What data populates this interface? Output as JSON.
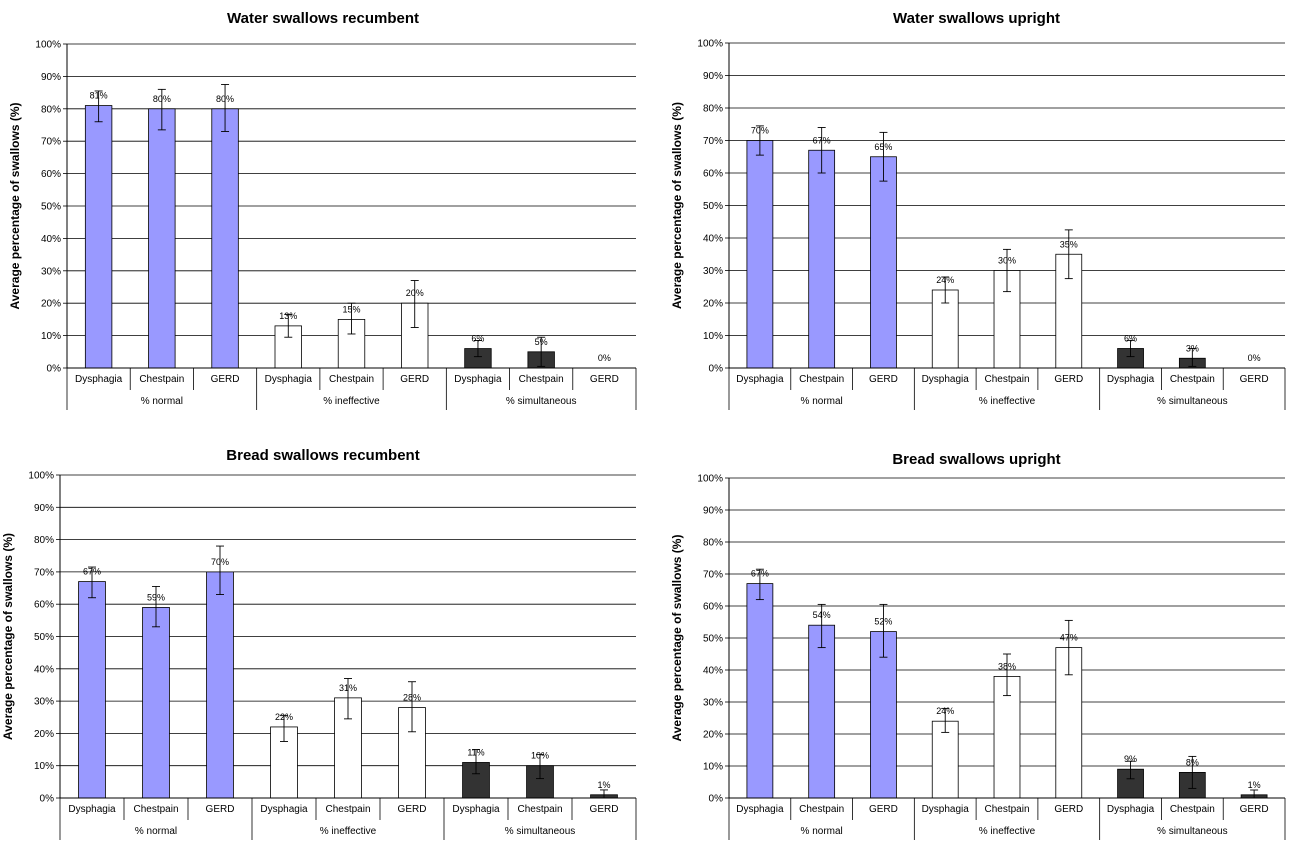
{
  "colors": {
    "normal": "#9999ff",
    "ineffective": "#ffffff",
    "simultaneous": "#333333"
  },
  "chart_data": [
    {
      "type": "bar",
      "title": "Water swallows recumbent",
      "ylabel": "Average percentage of swallows (%)",
      "ylim": [
        0,
        100
      ],
      "yticks": [
        "0%",
        "10%",
        "20%",
        "30%",
        "40%",
        "50%",
        "60%",
        "70%",
        "80%",
        "90%",
        "100%"
      ],
      "grid": true,
      "groups": [
        "% normal",
        "% ineffective",
        "% simultaneous"
      ],
      "categories": [
        "Dysphagia",
        "Chestpain",
        "GERD"
      ],
      "series": [
        {
          "values": [
            81,
            80,
            80
          ],
          "labels": [
            "81%",
            "80%",
            "80%"
          ],
          "err_lo": [
            76,
            73.5,
            73
          ],
          "err_hi": [
            85.5,
            86,
            87.5
          ]
        },
        {
          "values": [
            13,
            15,
            20
          ],
          "labels": [
            "13%",
            "15%",
            "20%"
          ],
          "err_lo": [
            9.5,
            10.5,
            12.5
          ],
          "err_hi": [
            16.5,
            20,
            27
          ]
        },
        {
          "values": [
            6,
            5,
            0
          ],
          "labels": [
            "6%",
            "5%",
            "0%"
          ],
          "err_lo": [
            3.5,
            0.5,
            0
          ],
          "err_hi": [
            8.5,
            9.5,
            0
          ]
        }
      ]
    },
    {
      "type": "bar",
      "title": "Water swallows upright",
      "ylabel": "Average percentage of swallows (%)",
      "ylim": [
        0,
        100
      ],
      "yticks": [
        "0%",
        "10%",
        "20%",
        "30%",
        "40%",
        "50%",
        "60%",
        "70%",
        "80%",
        "90%",
        "100%"
      ],
      "grid": true,
      "groups": [
        "% normal",
        "% ineffective",
        "% simultaneous"
      ],
      "categories": [
        "Dysphagia",
        "Chestpain",
        "GERD"
      ],
      "series": [
        {
          "values": [
            70,
            67,
            65
          ],
          "labels": [
            "70%",
            "67%",
            "65%"
          ],
          "err_lo": [
            65.5,
            60,
            57.5
          ],
          "err_hi": [
            74.5,
            74,
            72.5
          ]
        },
        {
          "values": [
            24,
            30,
            35
          ],
          "labels": [
            "24%",
            "30%",
            "35%"
          ],
          "err_lo": [
            20,
            23.5,
            27.5
          ],
          "err_hi": [
            28,
            36.5,
            42.5
          ]
        },
        {
          "values": [
            6,
            3,
            0
          ],
          "labels": [
            "6%",
            "3%",
            "0%"
          ],
          "err_lo": [
            3.5,
            0.5,
            0
          ],
          "err_hi": [
            8.5,
            6,
            0
          ]
        }
      ]
    },
    {
      "type": "bar",
      "title": "Bread swallows recumbent",
      "ylabel": "Average percentage of swallows (%)",
      "ylim": [
        0,
        100
      ],
      "yticks": [
        "0%",
        "10%",
        "20%",
        "30%",
        "40%",
        "50%",
        "60%",
        "70%",
        "80%",
        "90%",
        "100%"
      ],
      "grid": true,
      "groups": [
        "% normal",
        "% ineffective",
        "% simultaneous"
      ],
      "categories": [
        "Dysphagia",
        "Chestpain",
        "GERD"
      ],
      "series": [
        {
          "values": [
            67,
            59,
            70
          ],
          "labels": [
            "67%",
            "59%",
            "70%"
          ],
          "err_lo": [
            62,
            53,
            63
          ],
          "err_hi": [
            71.5,
            65.5,
            78
          ]
        },
        {
          "values": [
            22,
            31,
            28
          ],
          "labels": [
            "22%",
            "31%",
            "28%"
          ],
          "err_lo": [
            17.5,
            24.5,
            20.5
          ],
          "err_hi": [
            25.5,
            37,
            36
          ]
        },
        {
          "values": [
            11,
            10,
            1
          ],
          "labels": [
            "11%",
            "10%",
            "1%"
          ],
          "err_lo": [
            7.5,
            6,
            0
          ],
          "err_hi": [
            15,
            13.5,
            2.5
          ]
        }
      ]
    },
    {
      "type": "bar",
      "title": "Bread swallows upright",
      "ylabel": "Average percentage of swallows (%)",
      "ylim": [
        0,
        100
      ],
      "yticks": [
        "0%",
        "10%",
        "20%",
        "30%",
        "40%",
        "50%",
        "60%",
        "70%",
        "80%",
        "90%",
        "100%"
      ],
      "grid": true,
      "groups": [
        "% normal",
        "% ineffective",
        "% simultaneous"
      ],
      "categories": [
        "Dysphagia",
        "Chestpain",
        "GERD"
      ],
      "series": [
        {
          "values": [
            67,
            54,
            52
          ],
          "labels": [
            "67%",
            "54%",
            "52%"
          ],
          "err_lo": [
            62,
            47,
            44
          ],
          "err_hi": [
            71.5,
            60.5,
            60.5
          ]
        },
        {
          "values": [
            24,
            38,
            47
          ],
          "labels": [
            "24%",
            "38%",
            "47%"
          ],
          "err_lo": [
            20.5,
            32,
            38.5
          ],
          "err_hi": [
            28,
            45,
            55.5
          ]
        },
        {
          "values": [
            9,
            8,
            1
          ],
          "labels": [
            "9%",
            "8%",
            "1%"
          ],
          "err_lo": [
            6,
            3,
            0
          ],
          "err_hi": [
            11.5,
            13,
            2.5
          ]
        }
      ]
    }
  ]
}
